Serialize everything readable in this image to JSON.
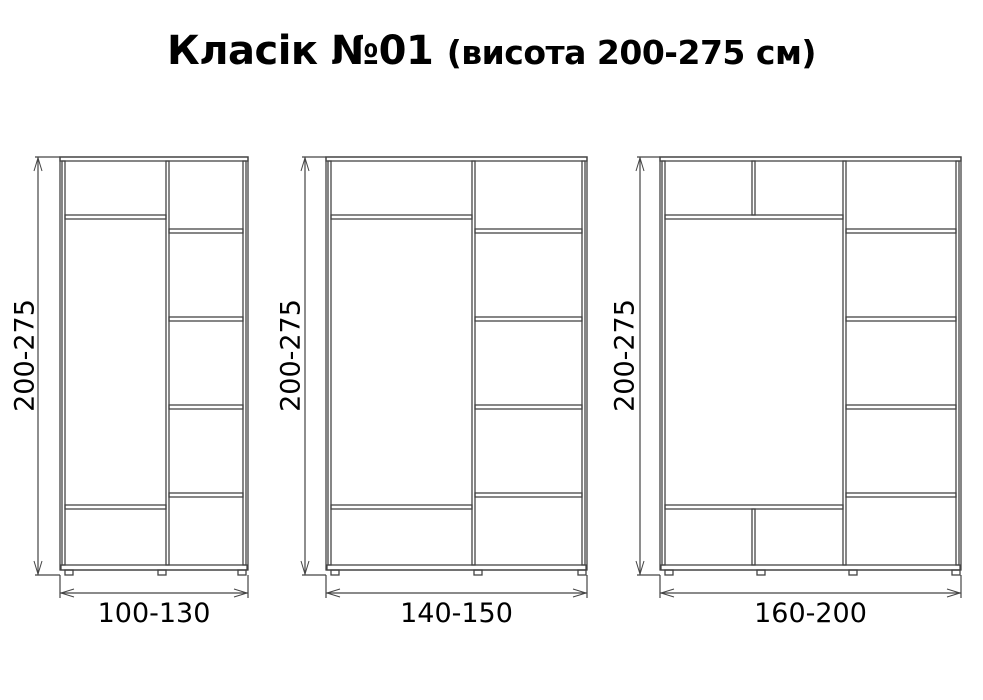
{
  "title": {
    "main": "Класік №01",
    "sub": "(висота 200-275 см)"
  },
  "wardrobes": [
    {
      "width_label": "100-130",
      "height_label": "200-275"
    },
    {
      "width_label": "140-150",
      "height_label": "200-275"
    },
    {
      "width_label": "160-200",
      "height_label": "200-275"
    }
  ],
  "colors": {
    "line": "#444444",
    "text": "#000000"
  }
}
